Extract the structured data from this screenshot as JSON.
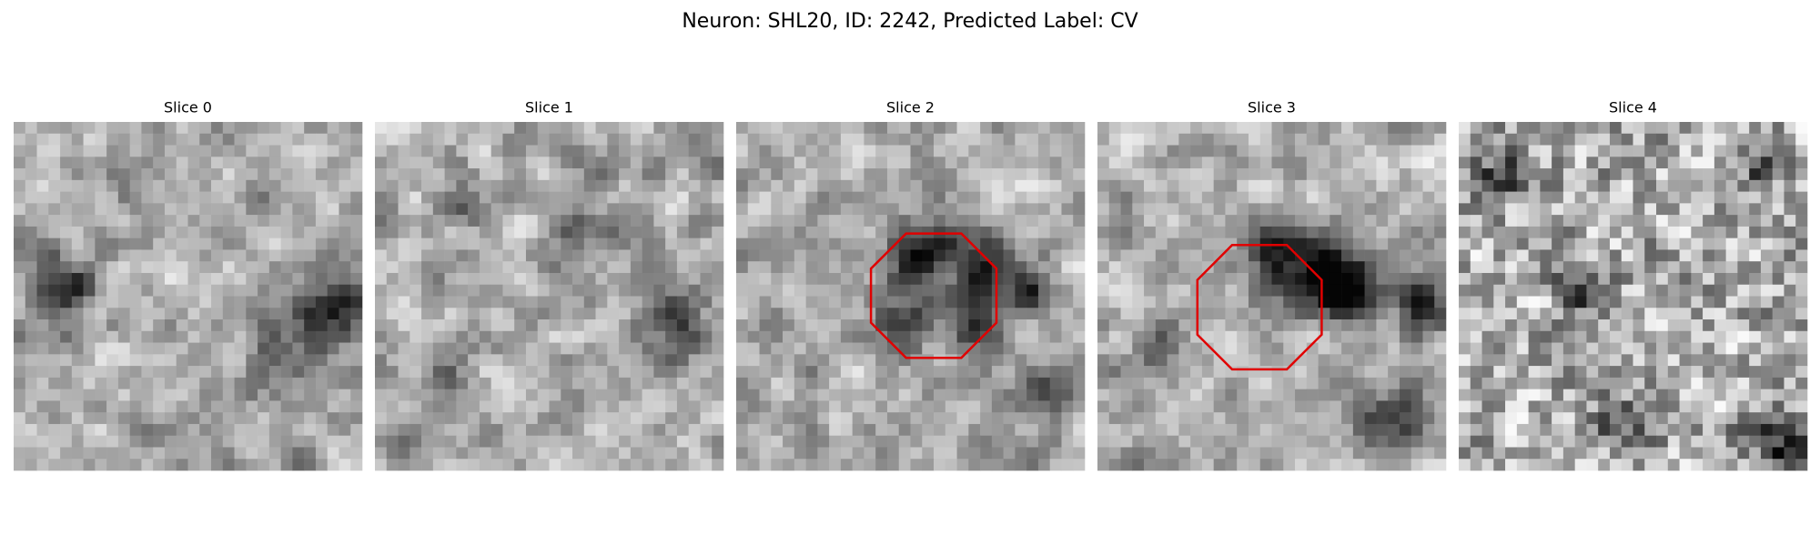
{
  "title": "Neuron: SHL20, ID: 2242, Predicted Label: CV",
  "panels": [
    {
      "title": "Slice 0"
    },
    {
      "title": "Slice 1"
    },
    {
      "title": "Slice 2"
    },
    {
      "title": "Slice 3"
    },
    {
      "title": "Slice 4"
    }
  ]
}
